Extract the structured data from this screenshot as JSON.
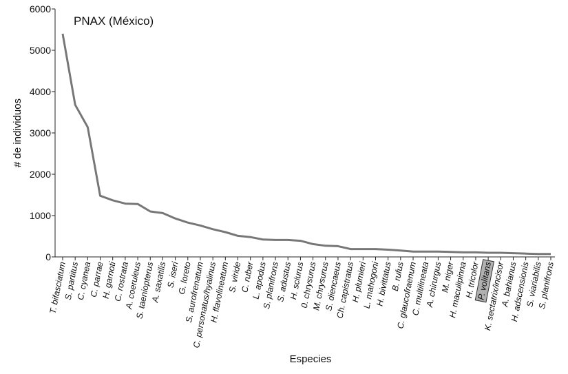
{
  "chart_data": {
    "type": "line",
    "title": "PNAX (México)",
    "xlabel": "Especies",
    "ylabel": "# de individuos",
    "ylim": [
      0,
      6000
    ],
    "yticks": [
      0,
      1000,
      2000,
      3000,
      4000,
      5000,
      6000
    ],
    "grid": false,
    "categories": [
      "T. bifasciatum",
      "S. partitus",
      "C. cyanea",
      "C. parrae",
      "H. garnoti",
      "C. rostrata",
      "A. coeruleus",
      "S. taeniopterus",
      "A. saxatilis",
      "S. iseri",
      "G. loreto",
      "S. aurofrenatum",
      "C. personatus/hyalinus",
      "H. flavolineatum",
      "S. viride",
      "C. ruber",
      "L. apodus",
      "S. planifrons",
      "S. adustus",
      "H. sciurus",
      "0. chrysurus",
      "M. chrysurus",
      "S. diencaeus",
      "Ch. capistratus",
      "H. plumieri",
      "L. mahogoni",
      "H. bivittatus",
      "B. rufus",
      "C. glaucofraenum",
      "C. multilineata",
      "A. chirurgus",
      "M. niger",
      "H. maculipinna",
      "H. tricolor",
      "P. volitans",
      "K. sectatrix/incisor",
      "A. bahianus",
      "H. adscensionis",
      "S. viariabilis",
      "S. planifrons"
    ],
    "highlighted_category": "P. volitans",
    "highlight_color": "#b0b0b0",
    "series": [
      {
        "color": "#777777",
        "values": [
          5400,
          3680,
          3140,
          1480,
          1370,
          1290,
          1280,
          1100,
          1060,
          930,
          830,
          760,
          670,
          600,
          510,
          480,
          420,
          410,
          410,
          390,
          310,
          270,
          260,
          190,
          190,
          190,
          175,
          155,
          130,
          130,
          130,
          120,
          110,
          110,
          100,
          100,
          90,
          80,
          70,
          70
        ]
      }
    ]
  }
}
